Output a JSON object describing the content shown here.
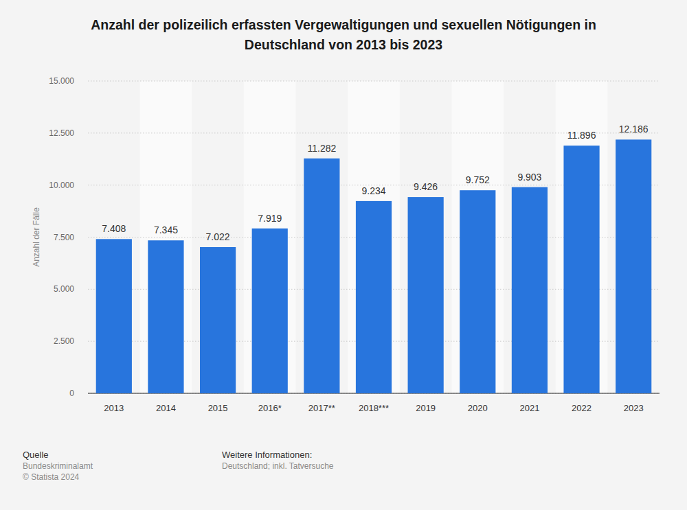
{
  "chart_data": {
    "type": "bar",
    "title": "Anzahl der polizeilich erfassten Vergewaltigungen und sexuellen Nötigungen in Deutschland von 2013 bis 2023",
    "y_label": "Anzahl der Fälle",
    "categories": [
      "2013",
      "2014",
      "2015",
      "2016*",
      "2017**",
      "2018***",
      "2019",
      "2020",
      "2021",
      "2022",
      "2023"
    ],
    "values": [
      7408,
      7345,
      7022,
      7919,
      11282,
      9234,
      9426,
      9752,
      9903,
      11896,
      12186
    ],
    "value_labels": [
      "7.408",
      "7.345",
      "7.022",
      "7.919",
      "11.282",
      "9.234",
      "9.426",
      "9.752",
      "9.903",
      "11.896",
      "12.186"
    ],
    "color": "#2875dd",
    "ylim": [
      0,
      15000
    ],
    "yticks": [
      0,
      {
        "value": 2500,
        "label": "2.500"
      },
      {
        "value": 5000,
        "label": "5.000"
      },
      {
        "value": 7500,
        "label": "7.500"
      },
      {
        "value": 10000,
        "label": "10.000"
      },
      {
        "value": 12500,
        "label": "12.500"
      },
      {
        "value": 15000,
        "label": "15.000"
      }
    ],
    "grid": true,
    "data_labels": true,
    "source_heading": "Quelle",
    "source": "Bundeskriminalamt",
    "copyright": "© Statista 2024",
    "info_heading": "Weitere Informationen:",
    "info": "Deutschland; inkl. Tatversuche"
  }
}
